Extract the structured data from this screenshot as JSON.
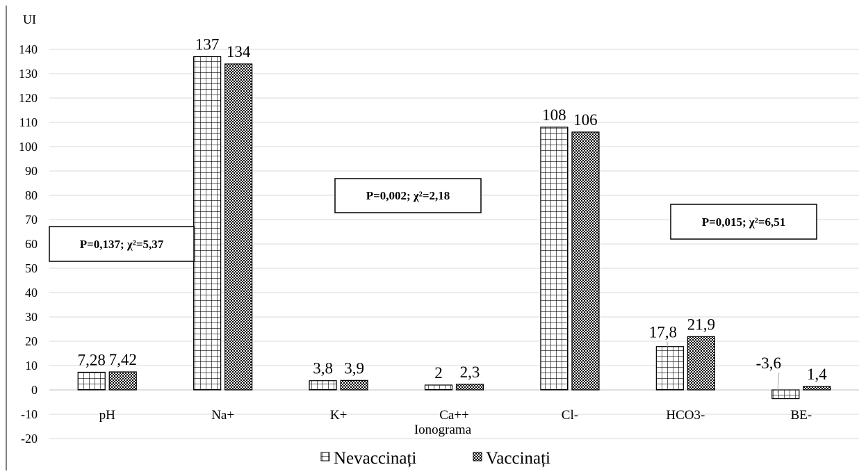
{
  "chart_data": {
    "type": "bar",
    "ylabel": "UI",
    "xlabel": "Ionograma",
    "categories": [
      "pH",
      "Na+",
      "K+",
      "Ca++",
      "Cl-",
      "HCO3-",
      "BE-"
    ],
    "ylim": [
      -20,
      140
    ],
    "ytick_step": 10,
    "grid": true,
    "legend_position": "bottom",
    "series": [
      {
        "name": "Nevaccinați",
        "values": [
          7.28,
          137,
          3.8,
          2,
          108,
          17.8,
          -3.6
        ],
        "labels": [
          "7,28",
          "137",
          "3,8",
          "2",
          "108",
          "17,8",
          "-3,6"
        ],
        "pattern": "grid"
      },
      {
        "name": "Vaccinați",
        "values": [
          7.42,
          134,
          3.9,
          2.3,
          106,
          21.9,
          1.4
        ],
        "labels": [
          "7,42",
          "134",
          "3,9",
          "2,3",
          "106",
          "21,9",
          "1,4"
        ],
        "pattern": "checker"
      }
    ],
    "annotations": [
      {
        "text": "P=0,137; χ²=5,37",
        "near": "pH"
      },
      {
        "text": "P=0,002; χ²=2,18",
        "near": "K+"
      },
      {
        "text": "P=0,015; χ²=6,51",
        "near": "HCO3-"
      }
    ]
  }
}
